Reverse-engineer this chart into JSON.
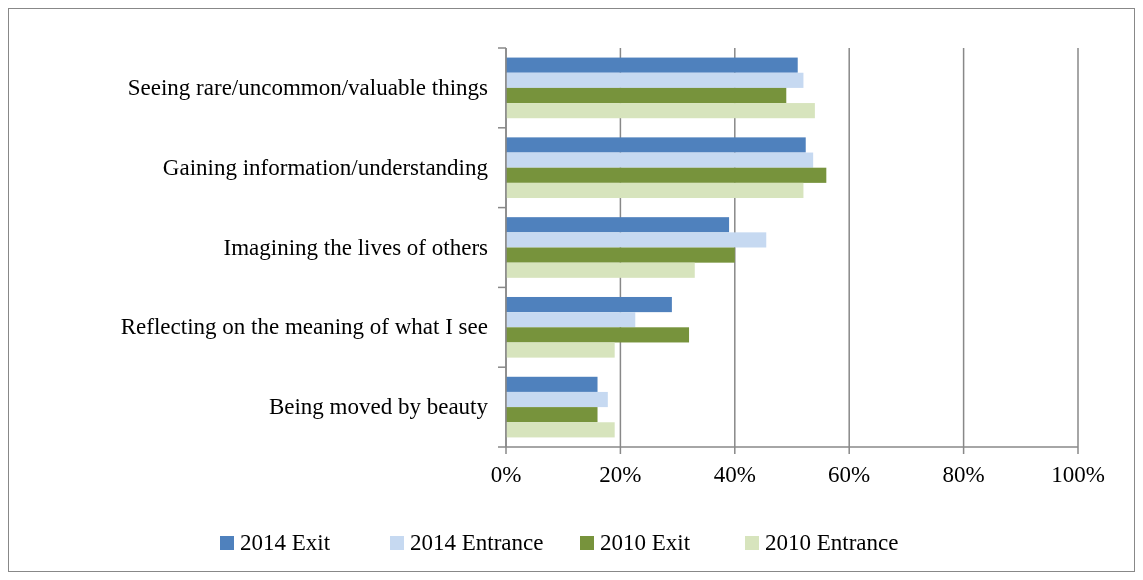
{
  "chart_data": {
    "type": "bar",
    "orientation": "horizontal",
    "categories": [
      "Seeing rare/uncommon/valuable things",
      "Gaining information/understanding",
      "Imagining the lives of others",
      "Reflecting on the meaning of what I see",
      "Being moved by beauty"
    ],
    "series": [
      {
        "name": "2014 Exit",
        "color": "#4f81bd",
        "values": [
          51,
          52.4,
          39,
          29,
          16
        ]
      },
      {
        "name": "2014 Entrance",
        "color": "#c6d9f1",
        "values": [
          52,
          53.7,
          45.5,
          22.6,
          17.8
        ]
      },
      {
        "name": "2010 Exit",
        "color": "#77933c",
        "values": [
          49,
          56,
          40,
          32,
          16
        ]
      },
      {
        "name": "2010 Entrance",
        "color": "#d7e4bd",
        "values": [
          54,
          52,
          33,
          19,
          19
        ]
      }
    ],
    "xlim": [
      0,
      100
    ],
    "xticks": [
      {
        "value": 0,
        "label": "0%"
      },
      {
        "value": 20,
        "label": "20%"
      },
      {
        "value": 40,
        "label": "40%"
      },
      {
        "value": 60,
        "label": "60%"
      },
      {
        "value": 80,
        "label": "80%"
      },
      {
        "value": 100,
        "label": "100%"
      }
    ],
    "grid": "x",
    "legend": "bottom"
  }
}
